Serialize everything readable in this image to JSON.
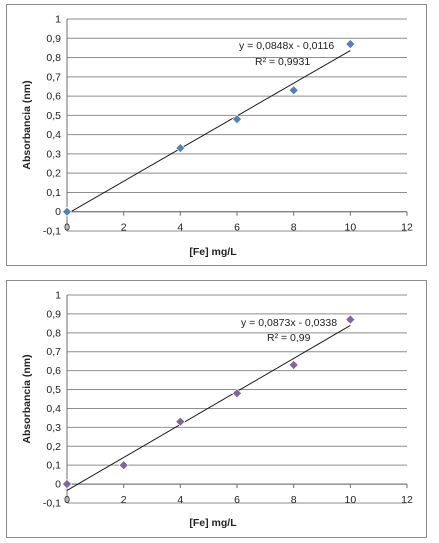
{
  "chart_data": [
    {
      "type": "scatter",
      "title": "",
      "xlabel": "[Fe] mg/L",
      "ylabel": "Absorbancia (nm)",
      "xlim": [
        0,
        12
      ],
      "ylim": [
        -0.1,
        1
      ],
      "x_ticks": [
        "0",
        "2",
        "4",
        "6",
        "8",
        "10",
        "12"
      ],
      "y_ticks": [
        "-0,1",
        "0",
        "0,1",
        "0,2",
        "0,3",
        "0,4",
        "0,5",
        "0,6",
        "0,7",
        "0,8",
        "0,9",
        "1"
      ],
      "grid": true,
      "marker_color": "#4f81bd",
      "series": [
        {
          "x": [
            0,
            4,
            6,
            8,
            10
          ],
          "y": [
            0,
            0.33,
            0.48,
            0.63,
            0.87
          ]
        }
      ],
      "trendline": {
        "type": "linear",
        "slope": 0.0848,
        "intercept": -0.0116
      },
      "annotations": [
        "y = 0,0848x - 0,0116",
        "R² = 0,9931"
      ]
    },
    {
      "type": "scatter",
      "title": "",
      "xlabel": "[Fe] mg/L",
      "ylabel": "Absorbancia  (nm)",
      "xlim": [
        0,
        12
      ],
      "ylim": [
        -0.1,
        1
      ],
      "x_ticks": [
        "0",
        "2",
        "4",
        "6",
        "8",
        "10",
        "12"
      ],
      "y_ticks": [
        "-0,1",
        "0",
        "0,1",
        "0,2",
        "0,3",
        "0,4",
        "0,5",
        "0,6",
        "0,7",
        "0,8",
        "0,9",
        "1"
      ],
      "grid": true,
      "marker_color": "#8064a2",
      "series": [
        {
          "x": [
            0,
            2,
            4,
            6,
            8,
            10
          ],
          "y": [
            0,
            0.1,
            0.33,
            0.48,
            0.63,
            0.87
          ]
        }
      ],
      "trendline": {
        "type": "linear",
        "slope": 0.0873,
        "intercept": -0.0338
      },
      "annotations": [
        "y = 0,0873x - 0,0338",
        "R² = 0,99"
      ]
    }
  ]
}
